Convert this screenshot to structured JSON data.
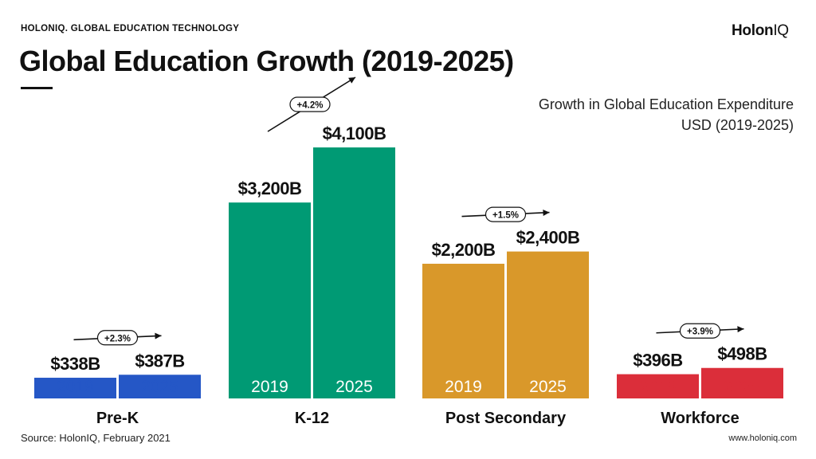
{
  "header": {
    "kicker": "HOLONIQ. GLOBAL EDUCATION TECHNOLOGY",
    "logo_main": "Holon",
    "logo_suffix": "IQ",
    "title": "Global Education Growth (2019-2025)"
  },
  "subtitle": {
    "line1": "Growth in Global Education Expenditure",
    "line2": "USD (2019-2025)"
  },
  "footer": {
    "source": "Source: HolonIQ, February 2021",
    "site": "www.holoniq.com"
  },
  "chart_data": {
    "type": "bar",
    "title": "Global Education Growth (2019-2025)",
    "subtitle": "Growth in Global Education Expenditure USD (2019-2025)",
    "unit": "USD billions",
    "categories": [
      "Pre-K",
      "K-12",
      "Post Secondary",
      "Workforce"
    ],
    "series": [
      {
        "year": "2019",
        "values": [
          338,
          3200,
          2200,
          396
        ],
        "labels": [
          "$338B",
          "$3,200B",
          "$2,200B",
          "$396B"
        ]
      },
      {
        "year": "2025",
        "values": [
          387,
          4100,
          2400,
          498
        ],
        "labels": [
          "$387B",
          "$4,100B",
          "$2,400B",
          "$498B"
        ]
      }
    ],
    "growth": [
      "+2.3%",
      "+4.2%",
      "+1.5%",
      "+3.9%"
    ],
    "colors": [
      "#2557c6",
      "#009a74",
      "#d9982a",
      "#db2e3a"
    ],
    "year_label_colors": [
      "#2557c6",
      "#ffffff",
      "#ffffff",
      "#db2e3a"
    ],
    "grid": false,
    "legend": "none"
  }
}
